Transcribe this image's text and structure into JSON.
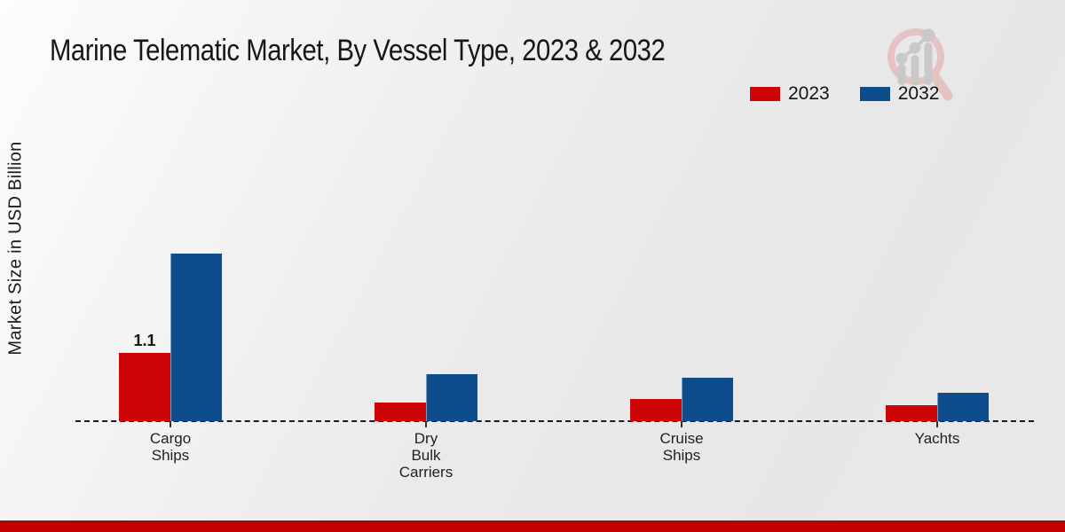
{
  "title": "Marine Telematic Market, By Vessel Type, 2023 & 2032",
  "y_axis_label": "Market Size in USD Billion",
  "legend": {
    "items": [
      {
        "label": "2023",
        "color": "#cc0606"
      },
      {
        "label": "2032",
        "color": "#0e4d8c"
      }
    ]
  },
  "logo": {
    "ring_color": "#e6c3c3",
    "chart_color": "#c9c9c9"
  },
  "footer": {
    "top_color": "#9e0c0c",
    "main_color": "#c40101"
  },
  "chart_data": {
    "type": "bar",
    "title": "Marine Telematic Market, By Vessel Type, 2023 & 2032",
    "ylabel": "Market Size in USD Billion",
    "categories": [
      "Cargo Ships",
      "Dry Bulk Carriers",
      "Cruise Ships",
      "Yachts"
    ],
    "category_label_lines": [
      [
        "Cargo",
        "Ships"
      ],
      [
        "Dry",
        "Bulk",
        "Carriers"
      ],
      [
        "Cruise",
        "Ships"
      ],
      [
        "Yachts"
      ]
    ],
    "series": [
      {
        "name": "2023",
        "color": "#cc0606",
        "values": [
          1.1,
          0.3,
          0.35,
          0.25
        ]
      },
      {
        "name": "2032",
        "color": "#0e4d8c",
        "values": [
          2.7,
          0.75,
          0.7,
          0.45
        ]
      }
    ],
    "data_labels": [
      {
        "series": "2023",
        "category": "Cargo Ships",
        "text": "1.1"
      }
    ],
    "ylim": [
      0,
      3
    ],
    "grid": false,
    "legend_position": "top-right"
  }
}
